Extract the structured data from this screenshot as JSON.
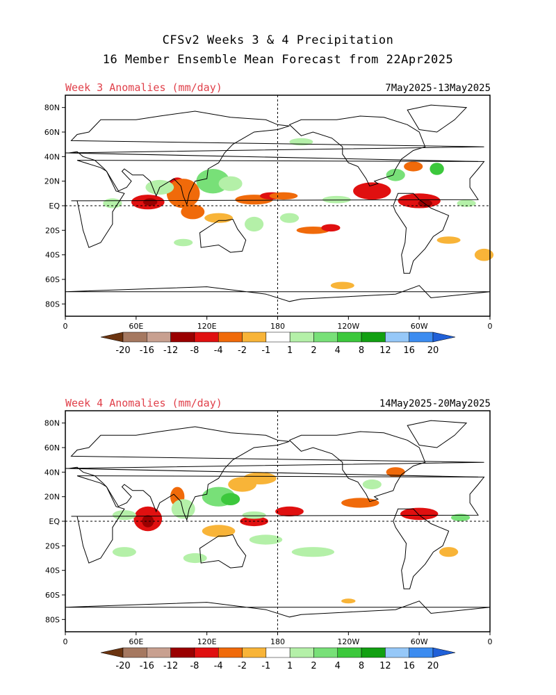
{
  "header": {
    "title_line1": "CFSv2 Weeks 3 & 4 Precipitation",
    "title_line2": "16 Member Ensemble Mean Forecast from 22Apr2025"
  },
  "panels": [
    {
      "label": "Week 3 Anomalies (mm/day)",
      "dates": "7May2025-13May2025",
      "anomalies": [
        {
          "lon": 70,
          "lat": 3,
          "rx": 14,
          "ry": 6,
          "cat": "dry_strong"
        },
        {
          "lon": 72,
          "lat": 3,
          "rx": 6,
          "ry": 3,
          "cat": "dry_extreme"
        },
        {
          "lon": 95,
          "lat": 15,
          "rx": 8,
          "ry": 8,
          "cat": "dry_strong"
        },
        {
          "lon": 100,
          "lat": 10,
          "rx": 14,
          "ry": 12,
          "cat": "dry_moderate"
        },
        {
          "lon": 108,
          "lat": -5,
          "rx": 10,
          "ry": 6,
          "cat": "dry_moderate"
        },
        {
          "lon": 130,
          "lat": -10,
          "rx": 12,
          "ry": 4,
          "cat": "dry_light"
        },
        {
          "lon": 160,
          "lat": 5,
          "rx": 16,
          "ry": 4,
          "cat": "dry_moderate"
        },
        {
          "lon": 175,
          "lat": 8,
          "rx": 10,
          "ry": 3,
          "cat": "dry_strong"
        },
        {
          "lon": 185,
          "lat": 8,
          "rx": 12,
          "ry": 3,
          "cat": "dry_moderate"
        },
        {
          "lon": 260,
          "lat": 12,
          "rx": 16,
          "ry": 7,
          "cat": "dry_strong"
        },
        {
          "lon": 300,
          "lat": 4,
          "rx": 18,
          "ry": 6,
          "cat": "dry_strong"
        },
        {
          "lon": 305,
          "lat": 2,
          "rx": 6,
          "ry": 3,
          "cat": "dry_extreme"
        },
        {
          "lon": 210,
          "lat": -20,
          "rx": 14,
          "ry": 3,
          "cat": "dry_moderate"
        },
        {
          "lon": 225,
          "lat": -18,
          "rx": 8,
          "ry": 3,
          "cat": "dry_strong"
        },
        {
          "lon": 325,
          "lat": -28,
          "rx": 10,
          "ry": 3,
          "cat": "dry_light"
        },
        {
          "lon": 355,
          "lat": -40,
          "rx": 8,
          "ry": 5,
          "cat": "dry_light"
        },
        {
          "lon": 295,
          "lat": 32,
          "rx": 8,
          "ry": 4,
          "cat": "dry_moderate"
        },
        {
          "lon": 235,
          "lat": -65,
          "rx": 10,
          "ry": 3,
          "cat": "dry_light"
        },
        {
          "lon": 120,
          "lat": 22,
          "rx": 6,
          "ry": 3,
          "cat": "dry_light"
        },
        {
          "lon": 80,
          "lat": 15,
          "rx": 12,
          "ry": 6,
          "cat": "wet_light"
        },
        {
          "lon": 125,
          "lat": 20,
          "rx": 14,
          "ry": 10,
          "cat": "wet_moderate"
        },
        {
          "lon": 140,
          "lat": 18,
          "rx": 10,
          "ry": 6,
          "cat": "wet_light"
        },
        {
          "lon": 40,
          "lat": 2,
          "rx": 8,
          "ry": 4,
          "cat": "wet_light"
        },
        {
          "lon": 160,
          "lat": -15,
          "rx": 8,
          "ry": 6,
          "cat": "wet_light"
        },
        {
          "lon": 230,
          "lat": 5,
          "rx": 12,
          "ry": 3,
          "cat": "wet_light"
        },
        {
          "lon": 280,
          "lat": 25,
          "rx": 8,
          "ry": 5,
          "cat": "wet_moderate"
        },
        {
          "lon": 340,
          "lat": 2,
          "rx": 8,
          "ry": 3,
          "cat": "wet_light"
        },
        {
          "lon": 190,
          "lat": -10,
          "rx": 8,
          "ry": 4,
          "cat": "wet_light"
        },
        {
          "lon": 315,
          "lat": 30,
          "rx": 6,
          "ry": 5,
          "cat": "wet_strong"
        },
        {
          "lon": 100,
          "lat": -30,
          "rx": 8,
          "ry": 3,
          "cat": "wet_light"
        },
        {
          "lon": 200,
          "lat": 52,
          "rx": 10,
          "ry": 3,
          "cat": "wet_light"
        }
      ]
    },
    {
      "label": "Week 4 Anomalies (mm/day)",
      "dates": "14May2025-20May2025",
      "anomalies": [
        {
          "lon": 70,
          "lat": 2,
          "rx": 12,
          "ry": 10,
          "cat": "dry_strong"
        },
        {
          "lon": 70,
          "lat": 0,
          "rx": 5,
          "ry": 5,
          "cat": "dry_extreme"
        },
        {
          "lon": 95,
          "lat": 20,
          "rx": 6,
          "ry": 8,
          "cat": "dry_moderate"
        },
        {
          "lon": 130,
          "lat": -8,
          "rx": 14,
          "ry": 5,
          "cat": "dry_light"
        },
        {
          "lon": 160,
          "lat": 0,
          "rx": 12,
          "ry": 4,
          "cat": "dry_strong"
        },
        {
          "lon": 190,
          "lat": 8,
          "rx": 12,
          "ry": 4,
          "cat": "dry_strong"
        },
        {
          "lon": 300,
          "lat": 6,
          "rx": 16,
          "ry": 5,
          "cat": "dry_strong"
        },
        {
          "lon": 250,
          "lat": 15,
          "rx": 16,
          "ry": 4,
          "cat": "dry_moderate"
        },
        {
          "lon": 150,
          "lat": 30,
          "rx": 12,
          "ry": 6,
          "cat": "dry_light"
        },
        {
          "lon": 165,
          "lat": 35,
          "rx": 14,
          "ry": 5,
          "cat": "dry_light"
        },
        {
          "lon": 280,
          "lat": 40,
          "rx": 8,
          "ry": 4,
          "cat": "dry_moderate"
        },
        {
          "lon": 325,
          "lat": -25,
          "rx": 8,
          "ry": 4,
          "cat": "dry_light"
        },
        {
          "lon": 240,
          "lat": -65,
          "rx": 6,
          "ry": 2,
          "cat": "dry_light"
        },
        {
          "lon": 100,
          "lat": 10,
          "rx": 10,
          "ry": 8,
          "cat": "wet_light"
        },
        {
          "lon": 130,
          "lat": 20,
          "rx": 14,
          "ry": 8,
          "cat": "wet_moderate"
        },
        {
          "lon": 140,
          "lat": 18,
          "rx": 8,
          "ry": 5,
          "cat": "wet_strong"
        },
        {
          "lon": 50,
          "lat": 5,
          "rx": 10,
          "ry": 4,
          "cat": "wet_light"
        },
        {
          "lon": 170,
          "lat": -15,
          "rx": 14,
          "ry": 4,
          "cat": "wet_light"
        },
        {
          "lon": 210,
          "lat": -25,
          "rx": 18,
          "ry": 4,
          "cat": "wet_light"
        },
        {
          "lon": 335,
          "lat": 3,
          "rx": 8,
          "ry": 3,
          "cat": "wet_moderate"
        },
        {
          "lon": 160,
          "lat": 5,
          "rx": 10,
          "ry": 3,
          "cat": "wet_light"
        },
        {
          "lon": 50,
          "lat": -25,
          "rx": 10,
          "ry": 4,
          "cat": "wet_light"
        },
        {
          "lon": 260,
          "lat": 30,
          "rx": 8,
          "ry": 4,
          "cat": "wet_light"
        },
        {
          "lon": 110,
          "lat": -30,
          "rx": 10,
          "ry": 4,
          "cat": "wet_light"
        }
      ]
    }
  ],
  "axes": {
    "lat_ticks": [
      "80N",
      "60N",
      "40N",
      "20N",
      "EQ",
      "20S",
      "40S",
      "60S",
      "80S"
    ],
    "lon_ticks": [
      "0",
      "60E",
      "120E",
      "180",
      "120W",
      "60W",
      "0"
    ]
  },
  "colorbar": {
    "labels": [
      "-20",
      "-16",
      "-12",
      "-8",
      "-4",
      "-2",
      "-1",
      "1",
      "2",
      "4",
      "8",
      "12",
      "16",
      "20"
    ],
    "colors": [
      "#6b3410",
      "#a57860",
      "#c8a090",
      "#9a0000",
      "#e01010",
      "#f06a0a",
      "#f8b438",
      "#ffffff",
      "#b4f0a8",
      "#78e078",
      "#3cc83c",
      "#12a012",
      "#96c8f8",
      "#3c8cf0",
      "#2060d8"
    ]
  },
  "category_colors": {
    "dry_extreme": "#9a0000",
    "dry_strong": "#e01010",
    "dry_moderate": "#f06a0a",
    "dry_light": "#f8b438",
    "wet_light": "#b4f0a8",
    "wet_moderate": "#78e078",
    "wet_strong": "#3cc83c",
    "wet_extreme": "#12a012"
  }
}
